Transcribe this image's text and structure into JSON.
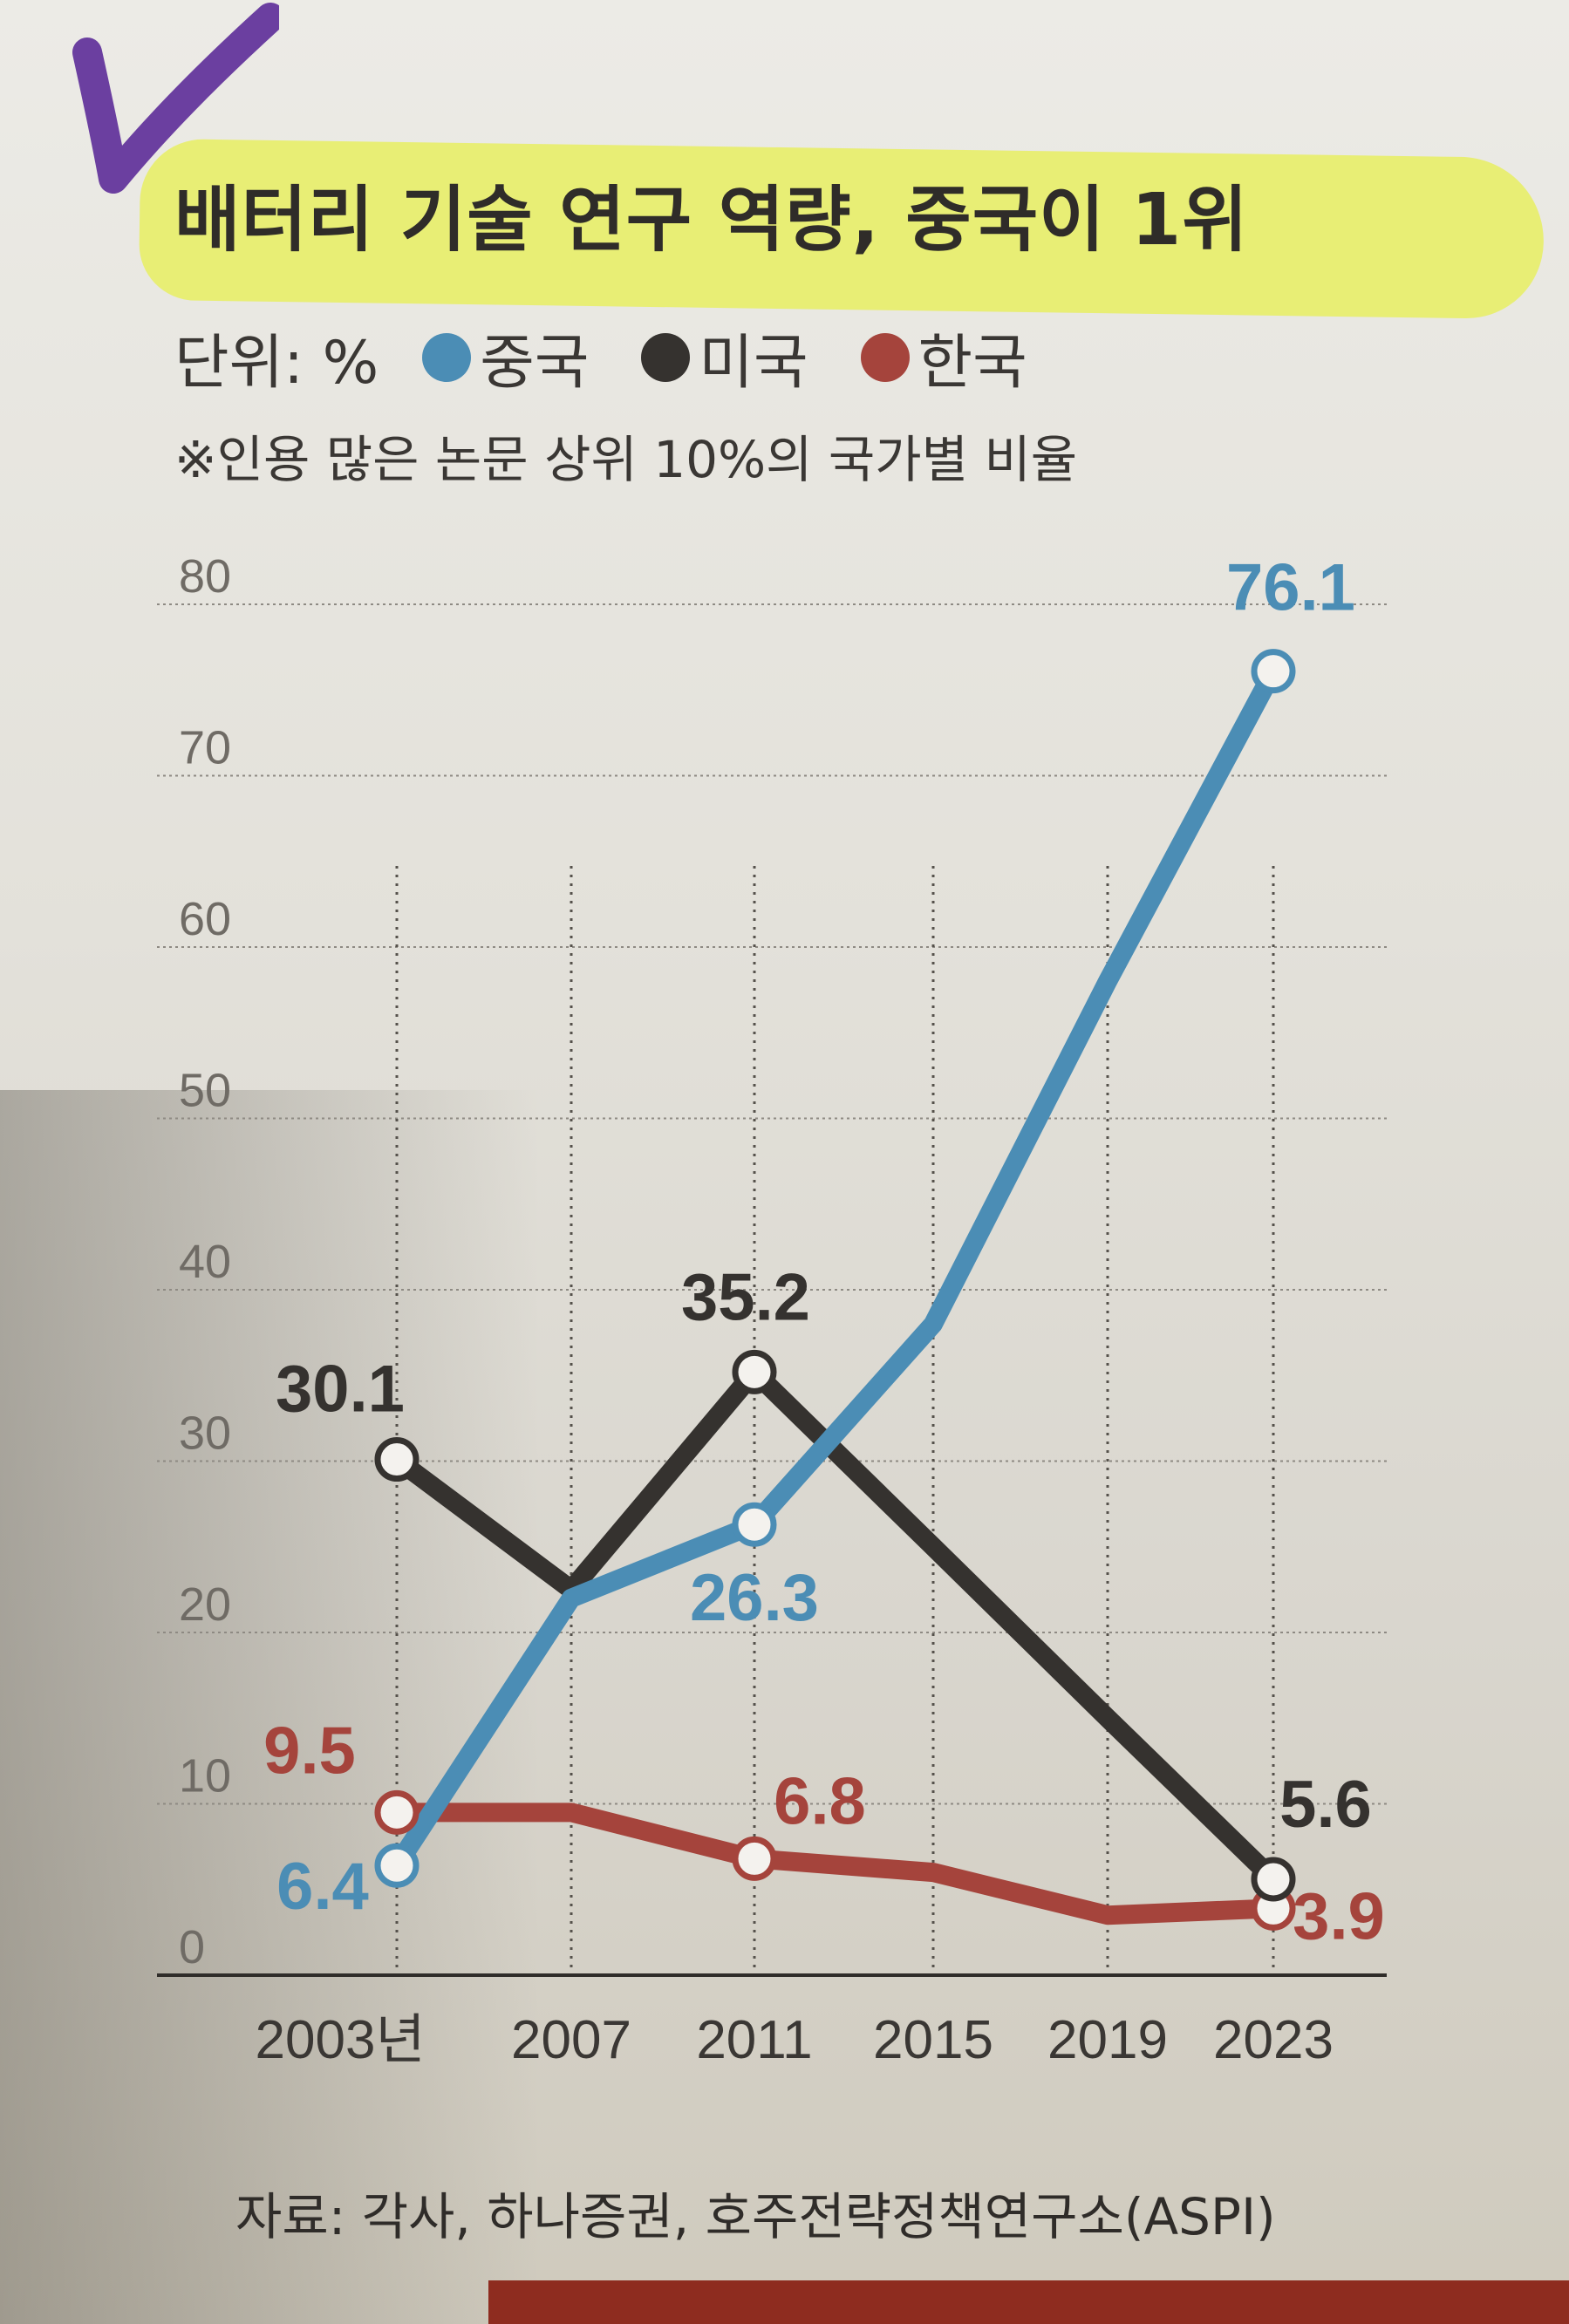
{
  "title": "배터리 기술 연구 역량, 중국이 1위",
  "unit_label": "단위: %",
  "note": "※인용 많은 논문 상위 10%의 국가별 비율",
  "source": "자료: 각사, 하나증권, 호주전략정책연구소(ASPI)",
  "colors": {
    "china": "#4b8db5",
    "usa": "#35322f",
    "korea": "#a5443c",
    "highlight": "#e7ef62"
  },
  "chart_data": {
    "type": "line",
    "title": "배터리 기술 연구 역량, 중국이 1위",
    "x": [
      "2003년",
      "2007",
      "2011",
      "2015",
      "2019",
      "2023"
    ],
    "ylim": [
      0,
      80
    ],
    "yticks": [
      0,
      10,
      20,
      30,
      40,
      50,
      60,
      70,
      80
    ],
    "grid": true,
    "legend": "top",
    "series": [
      {
        "name": "중국",
        "color": "#4b8db5",
        "values": [
          6.4,
          22,
          26.3,
          38,
          58,
          76.1
        ],
        "labels": [
          "6.4",
          "",
          "26.3",
          "",
          "",
          "76.1"
        ]
      },
      {
        "name": "미국",
        "color": "#35322f",
        "values": [
          30.1,
          22.5,
          35.2,
          25,
          15,
          5.6
        ],
        "labels": [
          "30.1",
          "",
          "35.2",
          "",
          "",
          "5.6"
        ]
      },
      {
        "name": "한국",
        "color": "#a5443c",
        "values": [
          9.5,
          9.5,
          6.8,
          6,
          3.5,
          3.9
        ],
        "labels": [
          "9.5",
          "",
          "6.8",
          "",
          "",
          "3.9"
        ]
      }
    ]
  }
}
